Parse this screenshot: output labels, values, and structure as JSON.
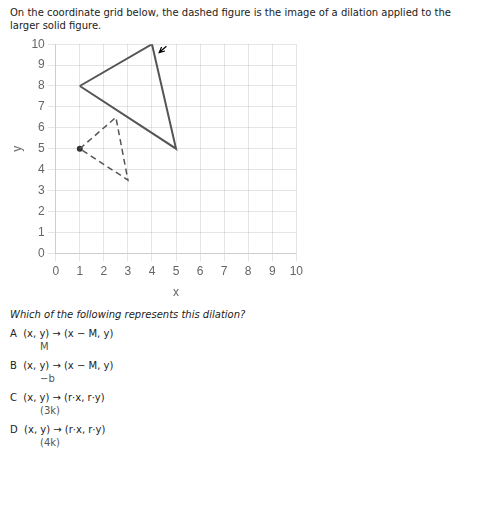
{
  "chart_data": {
    "type": "line",
    "title": [
      "On the coordinate grid below, the dashed figure is the image of a dilation applied to the",
      "larger solid figure."
    ],
    "x_label": "x",
    "y_label": "y",
    "xlim": [
      0,
      10
    ],
    "ylim": [
      0,
      10
    ],
    "xticks": [
      0,
      1,
      2,
      3,
      4,
      5,
      6,
      7,
      8,
      9,
      10
    ],
    "yticks": [
      0,
      1,
      2,
      3,
      4,
      5,
      6,
      7,
      8,
      9,
      10
    ],
    "grid": true,
    "series": [
      {
        "x": [
          1,
          4,
          5,
          1
        ],
        "values": [
          8,
          10,
          5,
          8
        ],
        "color": "#555555",
        "line_style": "solid"
      },
      {
        "x": [
          1,
          2.5,
          3.0,
          1
        ],
        "values": [
          5,
          6.5,
          3.5,
          5
        ],
        "color": "#555555",
        "line_style": "dashed"
      },
      {
        "x": [
          1
        ],
        "values": [
          5
        ],
        "color": "#333333",
        "marker": "circle"
      },
      {
        "x": [
          4.6,
          4.3
        ],
        "values": [
          9.9,
          9.6
        ],
        "color": "#000000",
        "marker": "arrow"
      }
    ],
    "annotations": [
      "Which of the following represents this dilation?",
      "A  (x, y) → (x − M, y)",
      "M",
      "B  (x, y) → (x − M, y)",
      "−b",
      "C  (x, y) → (r·x, r·y)",
      "(3k)",
      "D  (x, y) → (r·x, r·y)",
      "(4k)"
    ]
  }
}
